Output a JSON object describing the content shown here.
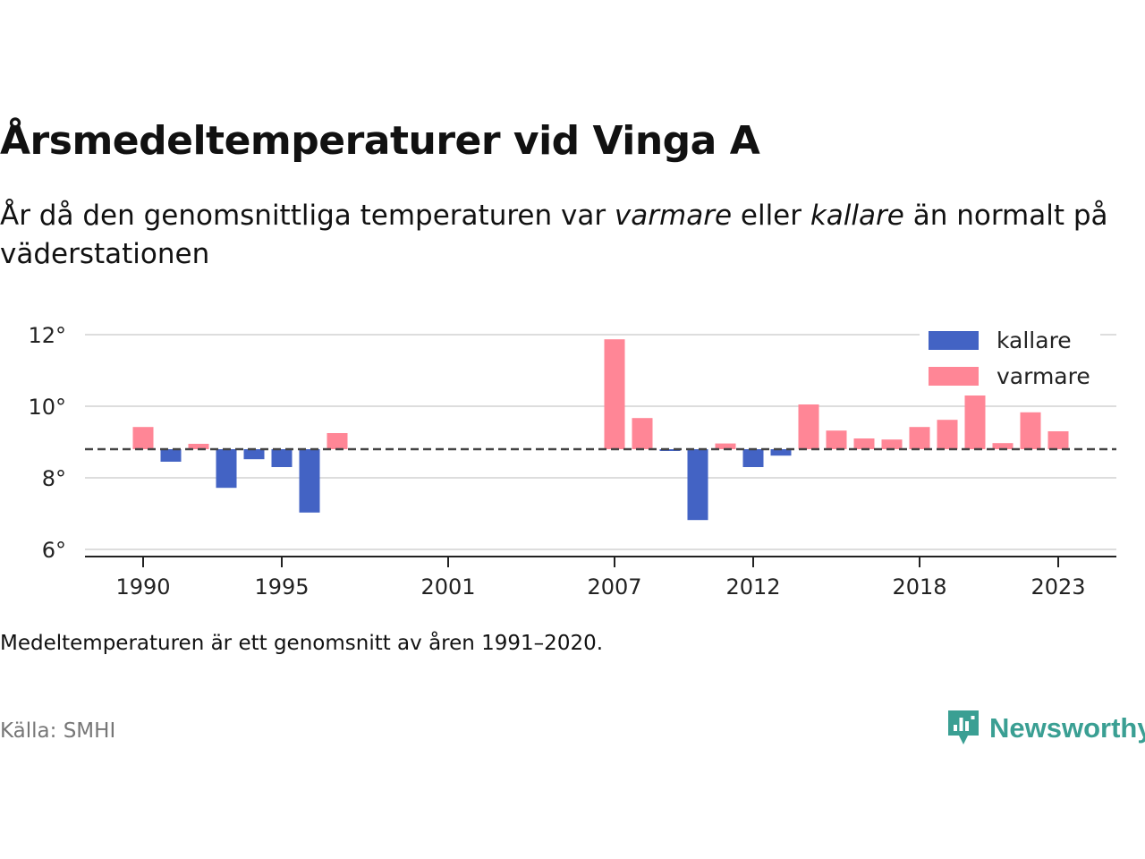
{
  "title": "Årsmedeltemperaturer vid Vinga A",
  "subtitle": {
    "part1": "År då den genomsnittliga temperaturen var ",
    "warm_word": "varmare",
    "part2": " eller ",
    "cold_word": "kallare",
    "part3": " än normalt på väderstationen"
  },
  "note": "Medeltemperaturen är ett genomsnitt av åren 1991–2020.",
  "source": "Källa: SMHI",
  "brand": {
    "name": "Newsworthy",
    "logo_icon": "newsworthy-logo-icon"
  },
  "chart_data": {
    "type": "bar",
    "baseline": 8.8,
    "ylim": [
      5.8,
      12.6
    ],
    "y_ticks": [
      {
        "value": 6,
        "label": "6°"
      },
      {
        "value": 8,
        "label": "8°"
      },
      {
        "value": 10,
        "label": "10°"
      },
      {
        "value": 12,
        "label": "12°"
      }
    ],
    "x_range": [
      1987.9,
      1990.0
    ],
    "x_ticks": [
      {
        "value": 1990,
        "label": "1990"
      },
      {
        "value": 1995,
        "label": "1995"
      },
      {
        "value": 2001,
        "label": "2001"
      },
      {
        "value": 2007,
        "label": "2007"
      },
      {
        "value": 2012,
        "label": "2012"
      },
      {
        "value": 2018,
        "label": "2018"
      },
      {
        "value": 2023,
        "label": "2023"
      }
    ],
    "legend": {
      "position": "top-right",
      "items": [
        {
          "key": "cold",
          "label": "kallare",
          "color": "#4363c4"
        },
        {
          "key": "warm",
          "label": "varmare",
          "color": "#ff8696"
        }
      ]
    },
    "points": [
      {
        "year": 1990,
        "value": 9.42
      },
      {
        "year": 1991,
        "value": 8.45
      },
      {
        "year": 1992,
        "value": 8.95
      },
      {
        "year": 1993,
        "value": 7.72
      },
      {
        "year": 1994,
        "value": 8.52
      },
      {
        "year": 1995,
        "value": 8.3
      },
      {
        "year": 1996,
        "value": 7.03
      },
      {
        "year": 1997,
        "value": 9.25
      },
      {
        "year": 2007,
        "value": 11.87
      },
      {
        "year": 2008,
        "value": 9.67
      },
      {
        "year": 2009,
        "value": 8.75
      },
      {
        "year": 2010,
        "value": 6.82
      },
      {
        "year": 2011,
        "value": 8.96
      },
      {
        "year": 2012,
        "value": 8.3
      },
      {
        "year": 2013,
        "value": 8.62
      },
      {
        "year": 2014,
        "value": 10.05
      },
      {
        "year": 2015,
        "value": 9.32
      },
      {
        "year": 2016,
        "value": 9.1
      },
      {
        "year": 2017,
        "value": 9.07
      },
      {
        "year": 2018,
        "value": 9.42
      },
      {
        "year": 2019,
        "value": 9.62
      },
      {
        "year": 2020,
        "value": 10.38
      },
      {
        "year": 2021,
        "value": 8.97
      },
      {
        "year": 2022,
        "value": 9.83
      },
      {
        "year": 2023,
        "value": 9.3
      }
    ]
  }
}
